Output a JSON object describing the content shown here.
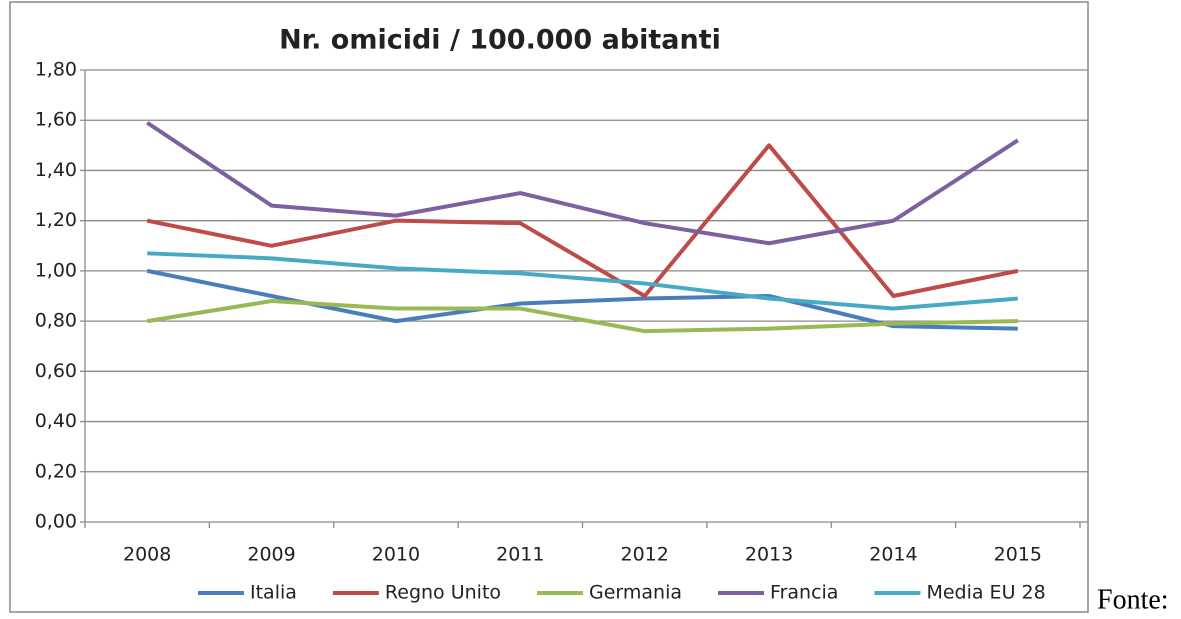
{
  "chart_data": {
    "type": "line",
    "title": "Nr. omicidi / 100.000 abitanti",
    "categories": [
      "2008",
      "2009",
      "2010",
      "2011",
      "2012",
      "2013",
      "2014",
      "2015"
    ],
    "series": [
      {
        "name": "Italia",
        "color": "#4a7ebb",
        "values": [
          1.0,
          0.9,
          0.8,
          0.87,
          0.89,
          0.9,
          0.78,
          0.77
        ]
      },
      {
        "name": "Regno Unito",
        "color": "#be4b48",
        "values": [
          1.2,
          1.1,
          1.2,
          1.19,
          0.9,
          1.5,
          0.9,
          1.0
        ]
      },
      {
        "name": "Germania",
        "color": "#98b954",
        "values": [
          0.8,
          0.88,
          0.85,
          0.85,
          0.76,
          0.77,
          0.79,
          0.8
        ]
      },
      {
        "name": "Francia",
        "color": "#7d60a0",
        "values": [
          1.59,
          1.26,
          1.22,
          1.31,
          1.19,
          1.11,
          1.2,
          1.52
        ]
      },
      {
        "name": "Media EU 28",
        "color": "#46aac5",
        "values": [
          1.07,
          1.05,
          1.01,
          0.99,
          0.95,
          0.89,
          0.85,
          0.89
        ]
      }
    ],
    "ylim": [
      0,
      1.8
    ],
    "yticks": [
      {
        "value": 0,
        "label": "0,00"
      },
      {
        "value": 0.2,
        "label": "0,20"
      },
      {
        "value": 0.4,
        "label": "0,40"
      },
      {
        "value": 0.6,
        "label": "0,60"
      },
      {
        "value": 0.8,
        "label": "0,80"
      },
      {
        "value": 1.0,
        "label": "1,00"
      },
      {
        "value": 1.2,
        "label": "1,20"
      },
      {
        "value": 1.4,
        "label": "1,40"
      },
      {
        "value": 1.6,
        "label": "1,60"
      },
      {
        "value": 1.8,
        "label": "1,80"
      }
    ],
    "grid": true,
    "legend": "bottom"
  },
  "trailing_text": "Fonte:"
}
